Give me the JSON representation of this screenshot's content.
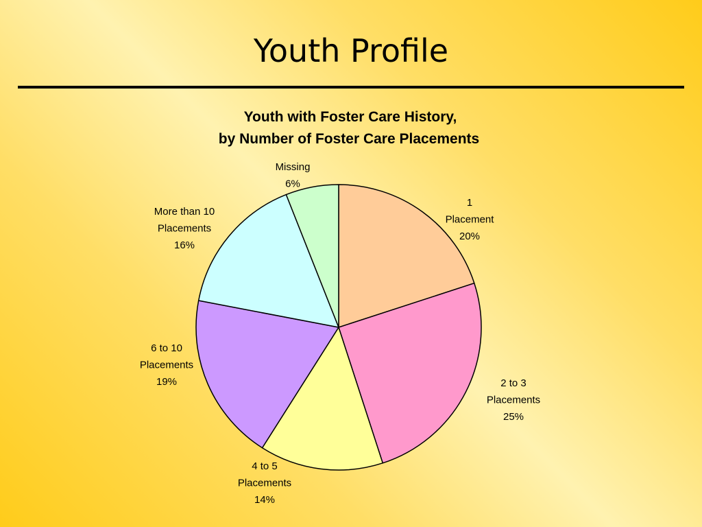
{
  "slide": {
    "title": "Youth Profile"
  },
  "chart_data": {
    "type": "pie",
    "title_lines": [
      "Youth with Foster Care History,",
      "by Number of Foster Care Placements"
    ],
    "slices": [
      {
        "label_lines": [
          "1",
          "Placement"
        ],
        "percent_label": "20%",
        "value": 20,
        "color": "#ffcc99"
      },
      {
        "label_lines": [
          "2 to 3",
          "Placements"
        ],
        "percent_label": "25%",
        "value": 25,
        "color": "#ff99cc"
      },
      {
        "label_lines": [
          "4 to 5",
          "Placements"
        ],
        "percent_label": "14%",
        "value": 14,
        "color": "#ffff99"
      },
      {
        "label_lines": [
          "6 to 10",
          "Placements"
        ],
        "percent_label": "19%",
        "value": 19,
        "color": "#cc99ff"
      },
      {
        "label_lines": [
          "More than 10",
          "Placements"
        ],
        "percent_label": "16%",
        "value": 16,
        "color": "#ccffff"
      },
      {
        "label_lines": [
          "Missing"
        ],
        "percent_label": "6%",
        "value": 6,
        "color": "#ccffcc"
      }
    ],
    "start_angle": "12 o'clock",
    "direction": "clockwise",
    "legend": "none"
  }
}
